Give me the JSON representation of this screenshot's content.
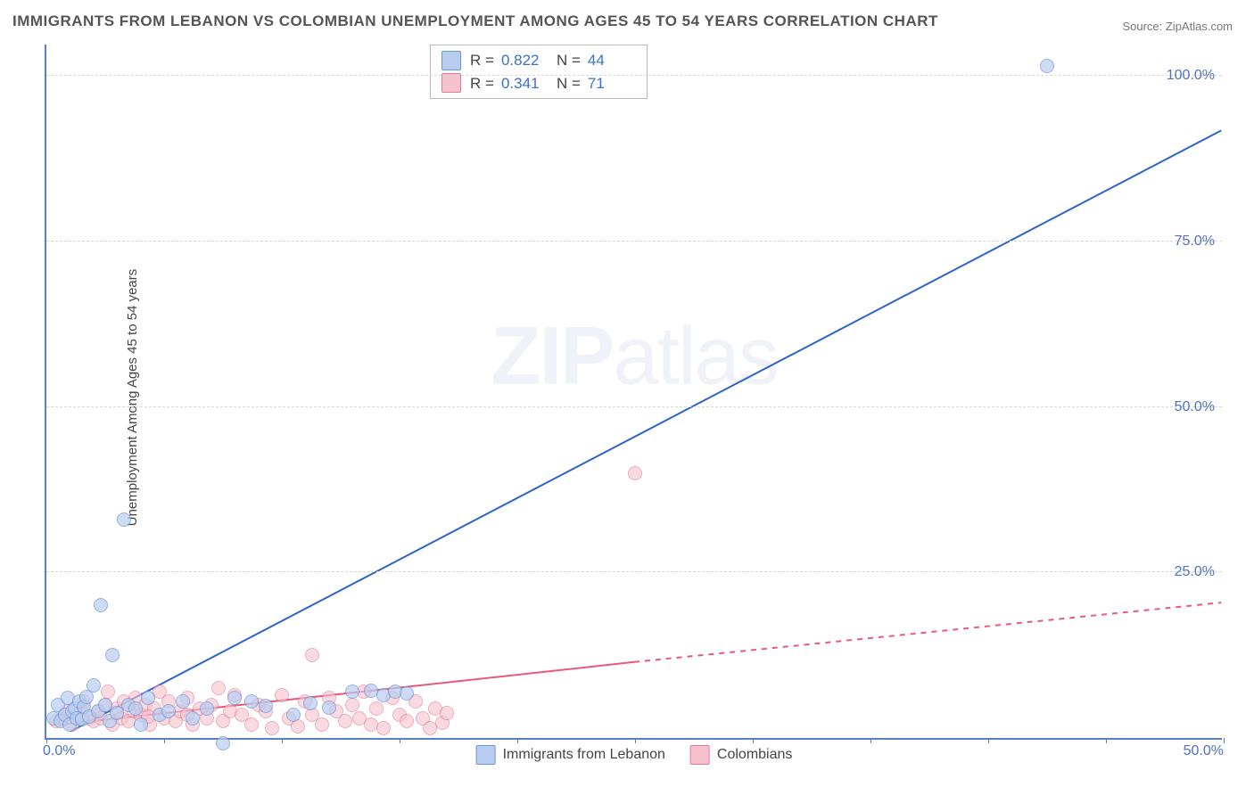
{
  "title": "IMMIGRANTS FROM LEBANON VS COLOMBIAN UNEMPLOYMENT AMONG AGES 45 TO 54 YEARS CORRELATION CHART",
  "source": "Source: ZipAtlas.com",
  "y_axis_label": "Unemployment Among Ages 45 to 54 years",
  "watermark_a": "ZIP",
  "watermark_b": "atlas",
  "chart": {
    "type": "scatter-with-regression",
    "background_color": "#ffffff",
    "axis_color": "#5a7fc9",
    "grid_color": "#d8d8d8",
    "xlim": [
      0,
      50
    ],
    "ylim": [
      0,
      105
    ],
    "x_ticks": [
      0,
      5,
      10,
      15,
      20,
      25,
      30,
      35,
      40,
      45,
      50
    ],
    "x_tick_labels": {
      "0": "0.0%",
      "50": "50.0%"
    },
    "y_ticks": [
      25,
      50,
      75,
      100
    ],
    "y_tick_labels": {
      "25": "25.0%",
      "50": "50.0%",
      "75": "75.0%",
      "100": "100.0%"
    },
    "marker_radius": 8,
    "marker_stroke_width": 1,
    "line_width": 2
  },
  "series": {
    "lebanon": {
      "label": "Immigrants from Lebanon",
      "R": "0.822",
      "N": "44",
      "fill": "#b8cdf0",
      "stroke": "#6b95d6",
      "fill_opacity": 0.7,
      "line_color": "#2f63c9",
      "regression": {
        "x1": 1.0,
        "y1": 1.0,
        "x2": 50.0,
        "y2": 92.0
      },
      "points": [
        [
          0.3,
          3.0
        ],
        [
          0.5,
          5.0
        ],
        [
          0.6,
          2.5
        ],
        [
          0.8,
          3.5
        ],
        [
          0.9,
          6.0
        ],
        [
          1.0,
          2.0
        ],
        [
          1.1,
          4.0
        ],
        [
          1.2,
          4.5
        ],
        [
          1.3,
          3.0
        ],
        [
          1.4,
          5.5
        ],
        [
          1.5,
          2.8
        ],
        [
          1.6,
          4.7
        ],
        [
          1.7,
          6.2
        ],
        [
          1.8,
          3.3
        ],
        [
          2.0,
          8.0
        ],
        [
          2.2,
          4.0
        ],
        [
          2.3,
          20.0
        ],
        [
          2.5,
          5.0
        ],
        [
          2.7,
          2.5
        ],
        [
          2.8,
          12.5
        ],
        [
          3.0,
          3.8
        ],
        [
          3.3,
          33.0
        ],
        [
          3.5,
          5.0
        ],
        [
          3.8,
          4.5
        ],
        [
          4.0,
          2.0
        ],
        [
          4.3,
          6.0
        ],
        [
          4.8,
          3.5
        ],
        [
          5.2,
          4.0
        ],
        [
          5.8,
          5.5
        ],
        [
          6.2,
          3.0
        ],
        [
          6.8,
          4.5
        ],
        [
          7.5,
          -0.8
        ],
        [
          8.0,
          6.0
        ],
        [
          8.7,
          5.5
        ],
        [
          9.3,
          4.8
        ],
        [
          10.5,
          3.5
        ],
        [
          11.2,
          5.2
        ],
        [
          12.0,
          4.6
        ],
        [
          13.0,
          7.0
        ],
        [
          13.8,
          7.2
        ],
        [
          14.3,
          6.5
        ],
        [
          14.8,
          7.0
        ],
        [
          15.3,
          6.8
        ],
        [
          42.5,
          101.5
        ]
      ]
    },
    "colombians": {
      "label": "Colombians",
      "R": "0.341",
      "N": "71",
      "fill": "#f6c2ce",
      "stroke": "#e37a95",
      "fill_opacity": 0.6,
      "line_color": "#e85a7d",
      "regression_solid": {
        "x1": 0.5,
        "y1": 2.0,
        "x2": 25.0,
        "y2": 11.5
      },
      "regression_dashed": {
        "x1": 25.0,
        "y1": 11.5,
        "x2": 50.0,
        "y2": 20.5
      },
      "points": [
        [
          0.4,
          2.5
        ],
        [
          0.7,
          3.0
        ],
        [
          0.9,
          4.0
        ],
        [
          1.1,
          2.0
        ],
        [
          1.3,
          3.5
        ],
        [
          1.5,
          4.5
        ],
        [
          1.6,
          5.5
        ],
        [
          1.8,
          3.0
        ],
        [
          2.0,
          2.5
        ],
        [
          2.2,
          4.0
        ],
        [
          2.3,
          3.0
        ],
        [
          2.5,
          5.0
        ],
        [
          2.6,
          7.0
        ],
        [
          2.8,
          2.0
        ],
        [
          3.0,
          4.5
        ],
        [
          3.2,
          3.0
        ],
        [
          3.3,
          5.5
        ],
        [
          3.5,
          2.5
        ],
        [
          3.7,
          4.0
        ],
        [
          3.8,
          6.0
        ],
        [
          4.0,
          3.5
        ],
        [
          4.2,
          5.0
        ],
        [
          4.4,
          2.0
        ],
        [
          4.6,
          4.5
        ],
        [
          4.8,
          7.0
        ],
        [
          5.0,
          3.0
        ],
        [
          5.2,
          5.5
        ],
        [
          5.5,
          2.5
        ],
        [
          5.7,
          4.0
        ],
        [
          6.0,
          6.0
        ],
        [
          6.2,
          2.0
        ],
        [
          6.5,
          4.5
        ],
        [
          6.8,
          3.0
        ],
        [
          7.0,
          5.0
        ],
        [
          7.3,
          7.5
        ],
        [
          7.5,
          2.5
        ],
        [
          7.8,
          4.0
        ],
        [
          8.0,
          6.5
        ],
        [
          8.3,
          3.5
        ],
        [
          8.7,
          2.0
        ],
        [
          9.0,
          5.0
        ],
        [
          9.3,
          4.0
        ],
        [
          9.6,
          1.5
        ],
        [
          10.0,
          6.5
        ],
        [
          10.3,
          3.0
        ],
        [
          10.7,
          1.8
        ],
        [
          11.0,
          5.5
        ],
        [
          11.3,
          3.5
        ],
        [
          11.3,
          12.5
        ],
        [
          11.7,
          2.0
        ],
        [
          12.0,
          6.0
        ],
        [
          12.3,
          4.0
        ],
        [
          12.7,
          2.5
        ],
        [
          13.0,
          5.0
        ],
        [
          13.3,
          3.0
        ],
        [
          13.5,
          7.0
        ],
        [
          13.8,
          2.0
        ],
        [
          14.0,
          4.5
        ],
        [
          14.3,
          1.5
        ],
        [
          14.7,
          6.0
        ],
        [
          15.0,
          3.5
        ],
        [
          15.3,
          2.5
        ],
        [
          15.7,
          5.5
        ],
        [
          16.0,
          3.0
        ],
        [
          16.3,
          1.5
        ],
        [
          16.5,
          4.5
        ],
        [
          16.8,
          2.3
        ],
        [
          17.0,
          3.8
        ],
        [
          25.0,
          40.0
        ],
        [
          4.3,
          3.2
        ],
        [
          6.0,
          3.5
        ]
      ]
    }
  }
}
